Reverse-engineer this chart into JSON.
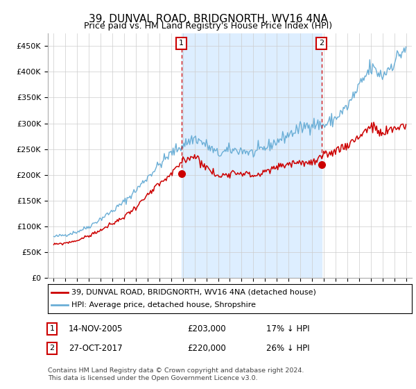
{
  "title": "39, DUNVAL ROAD, BRIDGNORTH, WV16 4NA",
  "subtitle": "Price paid vs. HM Land Registry's House Price Index (HPI)",
  "hpi_label": "HPI: Average price, detached house, Shropshire",
  "property_label": "39, DUNVAL ROAD, BRIDGNORTH, WV16 4NA (detached house)",
  "footnote": "Contains HM Land Registry data © Crown copyright and database right 2024.\nThis data is licensed under the Open Government Licence v3.0.",
  "purchase1": {
    "label": "1",
    "date": "14-NOV-2005",
    "price": "£203,000",
    "hpi_note": "17% ↓ HPI"
  },
  "purchase2": {
    "label": "2",
    "date": "27-OCT-2017",
    "price": "£220,000",
    "hpi_note": "26% ↓ HPI"
  },
  "purchase1_x": 2005.88,
  "purchase2_x": 2017.82,
  "purchase1_y": 203000,
  "purchase2_y": 220000,
  "ylim": [
    0,
    475000
  ],
  "yticks": [
    0,
    50000,
    100000,
    150000,
    200000,
    250000,
    300000,
    350000,
    400000,
    450000
  ],
  "xlim_left": 1994.5,
  "xlim_right": 2025.5,
  "hpi_color": "#6aaed6",
  "property_color": "#cc0000",
  "shade_color": "#ddeeff",
  "grid_color": "#cccccc",
  "background_color": "#ffffff"
}
